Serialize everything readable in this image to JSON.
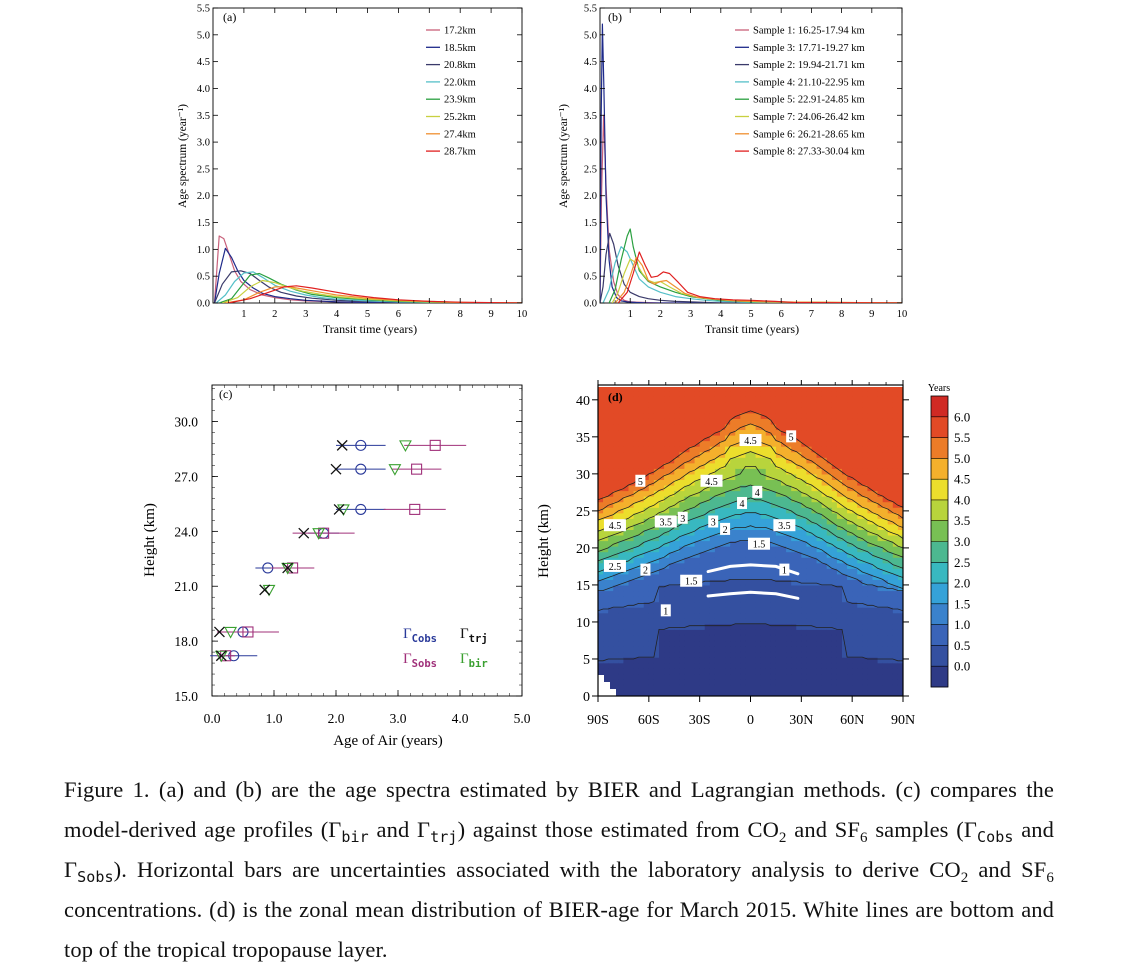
{
  "figure": {
    "caption_parts": [
      "Figure 1. (a) and (b) are the age spectra estimated by BIER and Lagrangian methods. (c) compares the model-derived age profiles (Γ",
      "bir",
      " and Γ",
      "trj",
      ") against those estimated from CO",
      "2",
      " and SF",
      "6",
      " samples (Γ",
      "Cobs",
      " and Γ",
      "Sobs",
      "). Horizontal bars are uncertainties associated with the laboratory analysis to derive CO",
      "2",
      " and SF",
      "6",
      " concentrations. (d) is the zonal mean distribution of BIER-age for March 2015. White lines are bottom and top of the tropical tropopause layer."
    ]
  },
  "chart_data": [
    {
      "panel": "(a)",
      "type": "line",
      "xlabel": "Transit time (years)",
      "ylabel": "Age spectrum (year⁻¹)",
      "xlim": [
        0,
        10
      ],
      "ylim": [
        0,
        5.5
      ],
      "xticks": [
        "1",
        "2",
        "3",
        "4",
        "5",
        "6",
        "7",
        "8",
        "9",
        "10"
      ],
      "yticks": [
        "0.0",
        "0.5",
        "1.0",
        "1.5",
        "2.0",
        "2.5",
        "3.0",
        "3.5",
        "4.0",
        "4.5",
        "5.0",
        "5.5"
      ],
      "legend_position": "top-right",
      "series": [
        {
          "name": "17.2km",
          "color": "#c8607a",
          "x": [
            0.05,
            0.2,
            0.35,
            0.5,
            0.7,
            0.9,
            1.2,
            1.6,
            2.0,
            2.5,
            3,
            4,
            5,
            6,
            7,
            8,
            10
          ],
          "y": [
            0,
            1.25,
            1.2,
            0.95,
            0.6,
            0.4,
            0.25,
            0.15,
            0.1,
            0.06,
            0.04,
            0.02,
            0.01,
            0.005,
            0,
            0,
            0
          ]
        },
        {
          "name": "18.5km",
          "color": "#1e2a8a",
          "x": [
            0.05,
            0.2,
            0.4,
            0.6,
            0.8,
            1.0,
            1.3,
            1.6,
            2.0,
            2.5,
            3,
            4,
            5,
            6,
            8,
            10
          ],
          "y": [
            0,
            0.55,
            1.02,
            0.85,
            0.6,
            0.42,
            0.28,
            0.18,
            0.12,
            0.08,
            0.05,
            0.02,
            0.01,
            0,
            0,
            0
          ]
        },
        {
          "name": "20.8km",
          "color": "#3a3a6a",
          "x": [
            0.05,
            0.3,
            0.6,
            0.9,
            1.2,
            1.5,
            1.8,
            2.2,
            2.7,
            3.2,
            4,
            5,
            6,
            8,
            10
          ],
          "y": [
            0,
            0.35,
            0.58,
            0.6,
            0.55,
            0.42,
            0.3,
            0.2,
            0.13,
            0.09,
            0.05,
            0.03,
            0.015,
            0,
            0
          ]
        },
        {
          "name": "22.0km",
          "color": "#55c0c8",
          "x": [
            0.1,
            0.4,
            0.7,
            1.0,
            1.3,
            1.6,
            2.0,
            2.5,
            3,
            3.5,
            4,
            5,
            6,
            8,
            10
          ],
          "y": [
            0,
            0.15,
            0.4,
            0.56,
            0.58,
            0.48,
            0.33,
            0.22,
            0.15,
            0.1,
            0.07,
            0.04,
            0.02,
            0,
            0
          ]
        },
        {
          "name": "23.9km",
          "color": "#2aa040",
          "x": [
            0.2,
            0.6,
            0.9,
            1.2,
            1.5,
            1.8,
            2.2,
            2.7,
            3.2,
            4,
            5,
            6,
            7,
            8,
            10
          ],
          "y": [
            0,
            0.08,
            0.3,
            0.52,
            0.55,
            0.47,
            0.35,
            0.24,
            0.16,
            0.1,
            0.06,
            0.03,
            0.015,
            0,
            0
          ]
        },
        {
          "name": "25.2km",
          "color": "#c8d040",
          "x": [
            0.3,
            0.8,
            1.2,
            1.6,
            2.0,
            2.4,
            2.9,
            3.5,
            4,
            5,
            6,
            7,
            8,
            10
          ],
          "y": [
            0,
            0.1,
            0.3,
            0.42,
            0.38,
            0.3,
            0.22,
            0.16,
            0.12,
            0.07,
            0.04,
            0.02,
            0.01,
            0
          ]
        },
        {
          "name": "27.4km",
          "color": "#f09030",
          "x": [
            0.4,
            1.0,
            1.5,
            2.0,
            2.5,
            3.0,
            3.5,
            4,
            5,
            6,
            7,
            8,
            10
          ],
          "y": [
            0,
            0.06,
            0.2,
            0.3,
            0.3,
            0.25,
            0.2,
            0.15,
            0.09,
            0.05,
            0.03,
            0.01,
            0
          ]
        },
        {
          "name": "28.7km",
          "color": "#e02020",
          "x": [
            0.5,
            1.2,
            1.8,
            2.3,
            2.7,
            3.2,
            3.8,
            4.5,
            5.2,
            6,
            7,
            8,
            10
          ],
          "y": [
            0,
            0.08,
            0.2,
            0.3,
            0.32,
            0.28,
            0.22,
            0.15,
            0.1,
            0.06,
            0.03,
            0.015,
            0
          ]
        }
      ]
    },
    {
      "panel": "(b)",
      "type": "line",
      "xlabel": "Transit time (years)",
      "ylabel": "Age spectrum (year⁻¹)",
      "xlim": [
        0,
        10
      ],
      "ylim": [
        0,
        5.5
      ],
      "xticks": [
        "1",
        "2",
        "3",
        "4",
        "5",
        "6",
        "7",
        "8",
        "9",
        "10"
      ],
      "yticks": [
        "0.0",
        "0.5",
        "1.0",
        "1.5",
        "2.0",
        "2.5",
        "3.0",
        "3.5",
        "4.0",
        "4.5",
        "5.0",
        "5.5"
      ],
      "legend_position": "top-right",
      "series": [
        {
          "name": "Sample 1: 16.25-17.94 km",
          "color": "#c8607a",
          "x": [
            0,
            0.05,
            0.12,
            0.2,
            0.3,
            0.45,
            0.6,
            0.8,
            1.0,
            1.5,
            2.0,
            3,
            10
          ],
          "y": [
            0,
            2.0,
            3.5,
            2.2,
            1.0,
            0.4,
            0.15,
            0.05,
            0.02,
            0.01,
            0,
            0,
            0
          ]
        },
        {
          "name": "Sample 3: 17.71-19.27 km",
          "color": "#1e2a8a",
          "x": [
            0,
            0.04,
            0.08,
            0.13,
            0.2,
            0.3,
            0.4,
            0.55,
            0.7,
            0.9,
            1.2,
            1.6,
            2,
            3,
            10
          ],
          "y": [
            0,
            3.5,
            5.2,
            4.0,
            2.0,
            0.8,
            0.3,
            0.1,
            0.04,
            0.02,
            0.01,
            0,
            0,
            0,
            0
          ]
        },
        {
          "name": "Sample 2: 19.94-21.71 km",
          "color": "#3a3a6a",
          "x": [
            0,
            0.1,
            0.2,
            0.32,
            0.45,
            0.6,
            0.8,
            1.0,
            1.3,
            1.6,
            2.0,
            2.5,
            3,
            4,
            10
          ],
          "y": [
            0,
            0.3,
            0.9,
            1.3,
            1.1,
            0.7,
            0.35,
            0.2,
            0.12,
            0.08,
            0.05,
            0.03,
            0.02,
            0,
            0
          ]
        },
        {
          "name": "Sample 4: 21.10-22.95 km",
          "color": "#55c0c8",
          "x": [
            0.1,
            0.3,
            0.5,
            0.7,
            0.9,
            1.1,
            1.3,
            1.6,
            2.0,
            2.5,
            3,
            3.5,
            4,
            5,
            10
          ],
          "y": [
            0,
            0.25,
            0.75,
            1.05,
            0.95,
            0.7,
            0.45,
            0.3,
            0.2,
            0.12,
            0.08,
            0.05,
            0.03,
            0.01,
            0
          ]
        },
        {
          "name": "Sample 5: 22.91-24.85 km",
          "color": "#2aa040",
          "x": [
            0.3,
            0.5,
            0.7,
            0.9,
            1.0,
            1.1,
            1.3,
            1.6,
            2.0,
            2.5,
            3,
            3.5,
            4,
            5,
            10
          ],
          "y": [
            0,
            0.25,
            0.8,
            1.25,
            1.38,
            1.05,
            0.6,
            0.4,
            0.3,
            0.2,
            0.12,
            0.08,
            0.05,
            0.02,
            0
          ]
        },
        {
          "name": "Sample 7: 24.06-26.42 km",
          "color": "#c8d040",
          "x": [
            0.4,
            0.6,
            0.8,
            1.0,
            1.2,
            1.4,
            1.6,
            1.8,
            2.0,
            2.3,
            2.7,
            3.2,
            3.8,
            4.5,
            5.5,
            10
          ],
          "y": [
            0,
            0.2,
            0.55,
            0.82,
            0.75,
            0.55,
            0.42,
            0.38,
            0.4,
            0.3,
            0.18,
            0.11,
            0.07,
            0.04,
            0.02,
            0
          ]
        },
        {
          "name": "Sample 6: 26.21-28.65 km",
          "color": "#f09030",
          "x": [
            0.5,
            0.8,
            1.0,
            1.2,
            1.4,
            1.6,
            1.8,
            2.0,
            2.2,
            2.5,
            2.8,
            3.2,
            3.8,
            4.5,
            5.5,
            10
          ],
          "y": [
            0,
            0.2,
            0.5,
            0.85,
            0.7,
            0.42,
            0.35,
            0.4,
            0.42,
            0.3,
            0.18,
            0.11,
            0.07,
            0.04,
            0.02,
            0
          ]
        },
        {
          "name": "Sample 8: 27.33-30.04 km",
          "color": "#e02020",
          "x": [
            0.6,
            0.9,
            1.1,
            1.3,
            1.5,
            1.7,
            1.9,
            2.1,
            2.3,
            2.6,
            2.9,
            3.3,
            3.8,
            4.4,
            5,
            5.8,
            6.4,
            10
          ],
          "y": [
            0,
            0.2,
            0.55,
            0.95,
            0.7,
            0.48,
            0.5,
            0.58,
            0.55,
            0.38,
            0.2,
            0.12,
            0.08,
            0.06,
            0.05,
            0.03,
            0.01,
            0
          ]
        }
      ]
    },
    {
      "panel": "(c)",
      "type": "scatter",
      "xlabel": "Age of Air (years)",
      "ylabel": "Height (km)",
      "xlim": [
        0,
        5
      ],
      "ylim": [
        15,
        32
      ],
      "xticks": [
        "0.0",
        "1.0",
        "2.0",
        "3.0",
        "4.0",
        "5.0"
      ],
      "yticks": [
        "15.0",
        "18.0",
        "21.0",
        "24.0",
        "27.0",
        "30.0"
      ],
      "legend": [
        {
          "label": "Γ",
          "sub": "Cobs",
          "color": "#2a3a9a",
          "marker": "circle"
        },
        {
          "label": "Γ",
          "sub": "trj",
          "color": "#111111",
          "marker": "x"
        },
        {
          "label": "Γ",
          "sub": "Sobs",
          "color": "#a0307a",
          "marker": "square"
        },
        {
          "label": "Γ",
          "sub": "bir",
          "color": "#3aa030",
          "marker": "triangle"
        }
      ],
      "heights": [
        17.2,
        18.5,
        20.8,
        22.0,
        23.9,
        25.2,
        27.4,
        28.7
      ],
      "gamma_trj": [
        0.15,
        0.12,
        0.85,
        1.22,
        1.48,
        2.05,
        2.0,
        2.1
      ],
      "gamma_bir": [
        0.15,
        0.3,
        0.92,
        1.22,
        1.72,
        2.12,
        2.95,
        3.12
      ],
      "gamma_cobs": [
        0.35,
        0.5,
        null,
        0.9,
        1.8,
        2.4,
        2.4,
        2.4
      ],
      "gamma_cobs_err": [
        0.38,
        0.2,
        null,
        0.2,
        0.25,
        0.4,
        0.4,
        0.4
      ],
      "gamma_sobs": [
        0.22,
        0.58,
        null,
        1.3,
        1.8,
        3.27,
        3.3,
        3.6
      ],
      "gamma_sobs_err": [
        0.15,
        0.5,
        null,
        0.35,
        0.5,
        0.5,
        0.4,
        0.5
      ]
    },
    {
      "panel": "(d)",
      "type": "heatmap",
      "xlabel": "",
      "ylabel": "Height (km)",
      "xticks": [
        "90S",
        "60S",
        "30S",
        "0",
        "30N",
        "60N",
        "90N"
      ],
      "yticks": [
        "0",
        "5",
        "10",
        "15",
        "20",
        "25",
        "30",
        "35",
        "40"
      ],
      "xlim": [
        -90,
        90
      ],
      "ylim": [
        0,
        42
      ],
      "colorbar_title": "Years",
      "colorbar_levels": [
        "0.0",
        "0.5",
        "1.0",
        "1.5",
        "2.0",
        "2.5",
        "3.0",
        "3.5",
        "4.0",
        "4.5",
        "5.0",
        "5.5",
        "6.0"
      ],
      "colorbar_colors": [
        "#2e3a86",
        "#3450a0",
        "#3a64b8",
        "#3a82cc",
        "#35a2d8",
        "#38b8c0",
        "#4cb890",
        "#78c054",
        "#b8d43c",
        "#ecde2c",
        "#f4b02c",
        "#ec7c28",
        "#e24a26",
        "#d02a24"
      ],
      "contour_labels": [
        "1",
        "1.5",
        "1.5",
        "2",
        "2",
        "2.5",
        "3",
        "3",
        "3.5",
        "3.5",
        "4",
        "4",
        "4.5",
        "4.5",
        "4.5",
        "5",
        "5",
        "1"
      ],
      "ttl_bottom_km": [
        13.5,
        13.8,
        14.0,
        13.8,
        13.2
      ],
      "ttl_top_km": [
        16.8,
        17.5,
        17.7,
        17.5,
        16.5
      ],
      "ttl_lat": [
        -25,
        -12,
        0,
        15,
        28
      ]
    }
  ]
}
